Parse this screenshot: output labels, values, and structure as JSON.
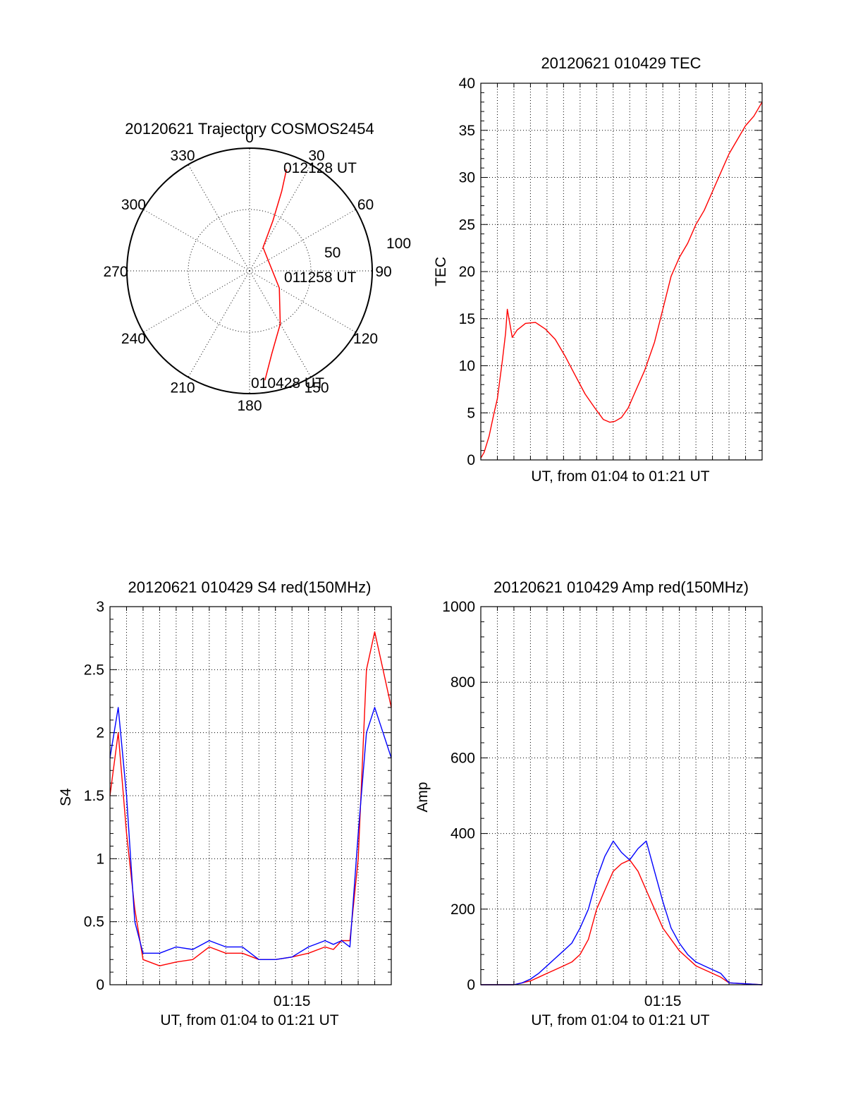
{
  "colors": {
    "red": "#ff0000",
    "blue": "#0000ff",
    "axis": "#000000",
    "background": "#ffffff"
  },
  "chart_data": [
    {
      "type": "polar",
      "title": "20120621 Trajectory COSMOS2454",
      "angle_labels": [
        "0",
        "30",
        "60",
        "90",
        "120",
        "150",
        "180",
        "210",
        "240",
        "270",
        "300",
        "330"
      ],
      "radial_labels": [
        "50",
        "100"
      ],
      "rlim": [
        0,
        100
      ],
      "angle_direction": "clockwise, 0 at top",
      "grid": true,
      "series": [
        {
          "color": "red",
          "points": [
            [
              172,
              90
            ],
            [
              165,
              70
            ],
            [
              150,
              50
            ],
            [
              120,
              28
            ],
            [
              30,
              22
            ],
            [
              25,
              45
            ],
            [
              22,
              70
            ],
            [
              20,
              88
            ]
          ]
        }
      ],
      "annotations": [
        {
          "text": "012128 UT",
          "angle": 20,
          "r": 88
        },
        {
          "text": "011258 UT",
          "angle": 90,
          "r": 32
        },
        {
          "text": "010428 UT",
          "angle": 172,
          "r": 90
        }
      ]
    },
    {
      "type": "line",
      "title": "20120621 010429 TEC",
      "xlabel": "UT, from 01:04 to 01:21 UT",
      "ylabel": "TEC",
      "xlim": [
        0,
        17
      ],
      "ylim": [
        0,
        40
      ],
      "yticks": [
        "0",
        "5",
        "10",
        "15",
        "20",
        "25",
        "30",
        "35",
        "40"
      ],
      "grid": true,
      "series": [
        {
          "color": "red",
          "x": [
            0.0,
            0.2,
            0.5,
            0.8,
            1.0,
            1.3,
            1.5,
            1.6,
            1.9,
            2.2,
            2.7,
            3.3,
            3.9,
            4.5,
            5.1,
            5.7,
            6.3,
            6.9,
            7.4,
            7.8,
            8.1,
            8.5,
            8.9,
            9.4,
            9.9,
            10.5,
            11.0,
            11.5,
            12.0,
            12.5,
            13.0,
            13.5,
            14.0,
            14.5,
            15.0,
            15.5,
            16.0,
            16.5,
            17.0
          ],
          "y": [
            0.2,
            0.8,
            2.5,
            5.0,
            6.5,
            10.5,
            13.5,
            16.0,
            13.0,
            13.8,
            14.5,
            14.6,
            13.9,
            12.8,
            11.0,
            9.0,
            7.0,
            5.5,
            4.3,
            4.0,
            4.1,
            4.5,
            5.5,
            7.5,
            9.5,
            12.5,
            16.0,
            19.5,
            21.5,
            23.0,
            25.0,
            26.5,
            28.5,
            30.5,
            32.5,
            34.0,
            35.5,
            36.5,
            38.0
          ]
        }
      ]
    },
    {
      "type": "line",
      "title": "20120621 010429 S4 red(150MHz)",
      "xlabel": "UT, from 01:04 to 01:21 UT",
      "ylabel": "S4",
      "xlim": [
        0,
        17
      ],
      "xticks": [
        {
          "value": 11,
          "label": "01:15"
        }
      ],
      "ylim": [
        0,
        3
      ],
      "yticks": [
        "0",
        "0.5",
        "1",
        "1.5",
        "2",
        "2.5",
        "3"
      ],
      "grid": true,
      "series": [
        {
          "color": "red",
          "x": [
            0.0,
            0.5,
            1.0,
            1.5,
            2.0,
            3.0,
            4.0,
            5.0,
            6.0,
            7.0,
            8.0,
            9.0,
            10.0,
            11.0,
            12.0,
            13.0,
            13.5,
            14.0,
            14.5,
            15.0,
            15.5,
            16.0,
            16.5,
            17.0
          ],
          "y": [
            1.5,
            2.0,
            1.2,
            0.6,
            0.2,
            0.15,
            0.18,
            0.2,
            0.3,
            0.25,
            0.25,
            0.2,
            0.2,
            0.22,
            0.25,
            0.3,
            0.28,
            0.35,
            0.35,
            1.0,
            2.5,
            2.8,
            2.5,
            2.2
          ]
        },
        {
          "color": "blue",
          "x": [
            0.0,
            0.5,
            1.0,
            1.5,
            2.0,
            3.0,
            4.0,
            5.0,
            6.0,
            7.0,
            8.0,
            9.0,
            10.0,
            11.0,
            12.0,
            13.0,
            13.5,
            14.0,
            14.5,
            15.0,
            15.5,
            16.0,
            16.5,
            17.0
          ],
          "y": [
            1.8,
            2.2,
            1.5,
            0.5,
            0.25,
            0.25,
            0.3,
            0.28,
            0.35,
            0.3,
            0.3,
            0.2,
            0.2,
            0.22,
            0.3,
            0.35,
            0.32,
            0.35,
            0.3,
            1.2,
            2.0,
            2.2,
            2.0,
            1.8
          ]
        }
      ]
    },
    {
      "type": "line",
      "title": "20120621 010429 Amp red(150MHz)",
      "xlabel": "UT, from 01:04 to 01:21 UT",
      "ylabel": "Amp",
      "xlim": [
        0,
        17
      ],
      "xticks": [
        {
          "value": 11,
          "label": "01:15"
        }
      ],
      "ylim": [
        0,
        1000
      ],
      "yticks": [
        "0",
        "200",
        "400",
        "600",
        "800",
        "1000"
      ],
      "grid": true,
      "series": [
        {
          "color": "red",
          "x": [
            0.0,
            2.0,
            2.5,
            3.0,
            3.5,
            4.0,
            4.5,
            5.0,
            5.5,
            6.0,
            6.5,
            7.0,
            7.5,
            8.0,
            8.5,
            9.0,
            9.5,
            10.0,
            10.5,
            11.0,
            11.5,
            12.0,
            12.5,
            13.0,
            13.5,
            14.0,
            14.5,
            15.0,
            17.0
          ],
          "y": [
            0,
            0,
            5,
            10,
            20,
            30,
            40,
            50,
            60,
            80,
            120,
            200,
            250,
            300,
            320,
            330,
            300,
            250,
            200,
            150,
            120,
            90,
            70,
            50,
            40,
            30,
            20,
            5,
            0
          ]
        },
        {
          "color": "blue",
          "x": [
            0.0,
            2.0,
            2.5,
            3.0,
            3.5,
            4.0,
            4.5,
            5.0,
            5.5,
            6.0,
            6.5,
            7.0,
            7.5,
            8.0,
            8.5,
            9.0,
            9.5,
            10.0,
            10.5,
            11.0,
            11.5,
            12.0,
            12.5,
            13.0,
            13.5,
            14.0,
            14.5,
            15.0,
            17.0
          ],
          "y": [
            0,
            0,
            5,
            15,
            30,
            50,
            70,
            90,
            110,
            150,
            200,
            280,
            340,
            380,
            350,
            330,
            360,
            380,
            300,
            220,
            150,
            110,
            80,
            60,
            50,
            40,
            30,
            5,
            0
          ]
        }
      ]
    }
  ]
}
